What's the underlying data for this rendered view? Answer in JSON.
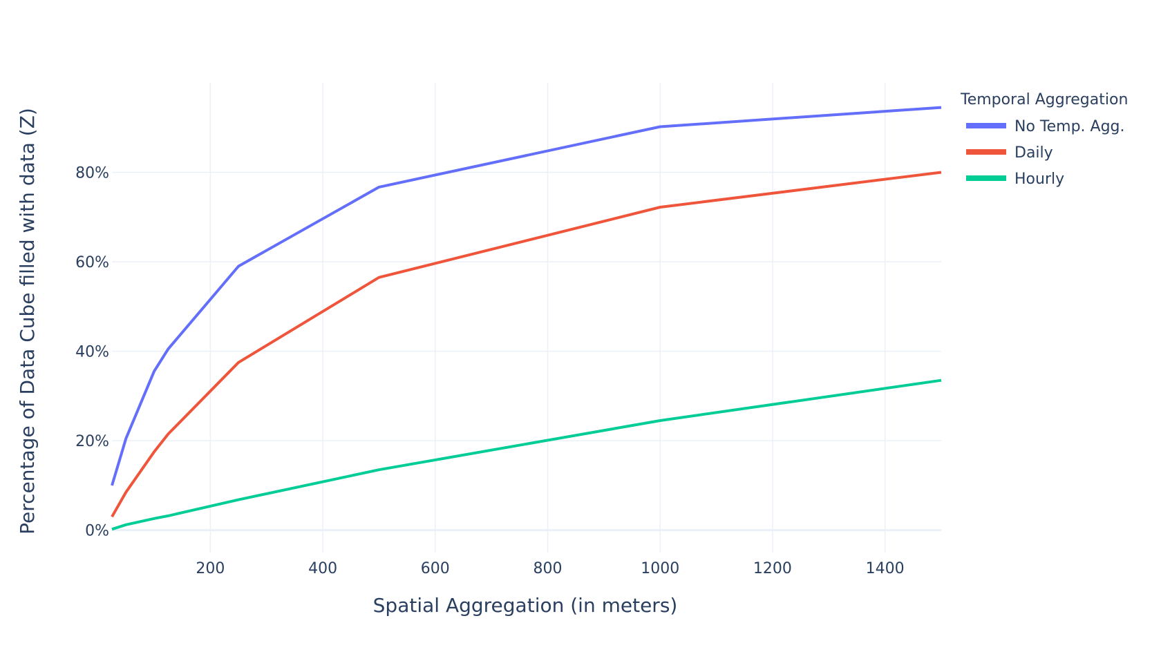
{
  "chart_data": {
    "type": "line",
    "title": "",
    "xlabel": "Spatial Aggregation (in meters)",
    "ylabel": "Percentage of Data Cube filled with data (Z)",
    "xlim": [
      25,
      1500
    ],
    "ylim": [
      -0.05,
      1.0
    ],
    "x_ticks": [
      200,
      400,
      600,
      800,
      1000,
      1200,
      1400
    ],
    "y_ticks": [
      0,
      0.2,
      0.4,
      0.6,
      0.8
    ],
    "y_tick_labels": [
      "0%",
      "20%",
      "40%",
      "60%",
      "80%"
    ],
    "grid": true,
    "legend_title": "Temporal Aggregation",
    "legend_position": "top-right",
    "x": [
      25,
      50,
      100,
      125,
      250,
      500,
      1000,
      1500
    ],
    "series": [
      {
        "name": "No Temp. Agg.",
        "color": "#636efa",
        "values": [
          0.1,
          0.205,
          0.355,
          0.405,
          0.59,
          0.767,
          0.902,
          0.945
        ]
      },
      {
        "name": "Daily",
        "color": "#ef553b",
        "values": [
          0.03,
          0.085,
          0.175,
          0.215,
          0.375,
          0.565,
          0.722,
          0.8
        ]
      },
      {
        "name": "Hourly",
        "color": "#00cc96",
        "values": [
          0.002,
          0.012,
          0.026,
          0.032,
          0.068,
          0.135,
          0.245,
          0.335
        ]
      }
    ]
  }
}
